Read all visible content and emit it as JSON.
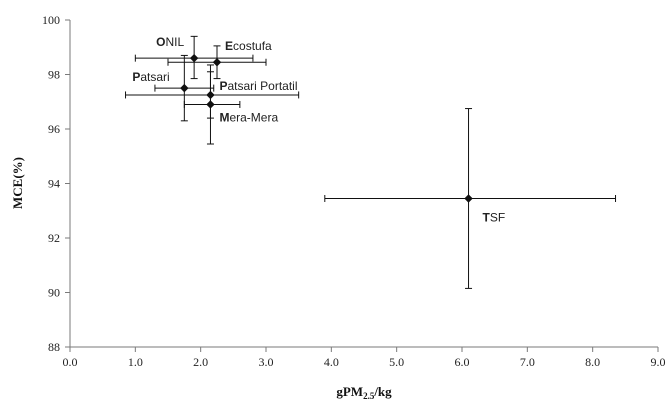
{
  "chart_data": {
    "type": "scatter",
    "xlabel": "gPM",
    "xlabel_sub": "2.5",
    "xlabel_tail": "/kg",
    "ylabel": "MCE(%)",
    "xlim": [
      0.0,
      9.0
    ],
    "ylim": [
      88,
      100
    ],
    "xticks": [
      "0.0",
      "1.0",
      "2.0",
      "3.0",
      "4.0",
      "5.0",
      "6.0",
      "7.0",
      "8.0",
      "9.0"
    ],
    "yticks": [
      "88",
      "90",
      "92",
      "94",
      "96",
      "98",
      "100"
    ],
    "grid": false,
    "points": [
      {
        "label": "ONIL",
        "initial": "O",
        "rest": "NIL",
        "x": 1.9,
        "y": 98.6,
        "x_err": [
          1.0,
          2.8
        ],
        "y_err": [
          97.85,
          99.4
        ]
      },
      {
        "label": "Ecostufa",
        "initial": "E",
        "rest": "costufa",
        "x": 2.25,
        "y": 98.45,
        "x_err": [
          1.5,
          3.0
        ],
        "y_err": [
          97.85,
          99.05
        ]
      },
      {
        "label": "Patsari",
        "initial": "P",
        "rest": "atsari",
        "x": 1.75,
        "y": 97.5,
        "x_err": [
          1.3,
          2.2
        ],
        "y_err": [
          96.3,
          98.7
        ]
      },
      {
        "label": "Patsari Portatil",
        "initial": "P",
        "rest": "atsari Portatil",
        "x": 2.15,
        "y": 97.25,
        "x_err": [
          0.85,
          3.5
        ],
        "y_err": [
          96.4,
          98.1
        ]
      },
      {
        "label": "Mera-Mera",
        "initial": "M",
        "rest": "era-Mera",
        "x": 2.15,
        "y": 96.9,
        "x_err": [
          1.75,
          2.6
        ],
        "y_err": [
          95.45,
          98.35
        ]
      },
      {
        "label": "TSF",
        "initial": "T",
        "rest": "SF",
        "x": 6.1,
        "y": 93.45,
        "x_err": [
          3.9,
          8.35
        ],
        "y_err": [
          90.15,
          96.75
        ]
      }
    ]
  }
}
